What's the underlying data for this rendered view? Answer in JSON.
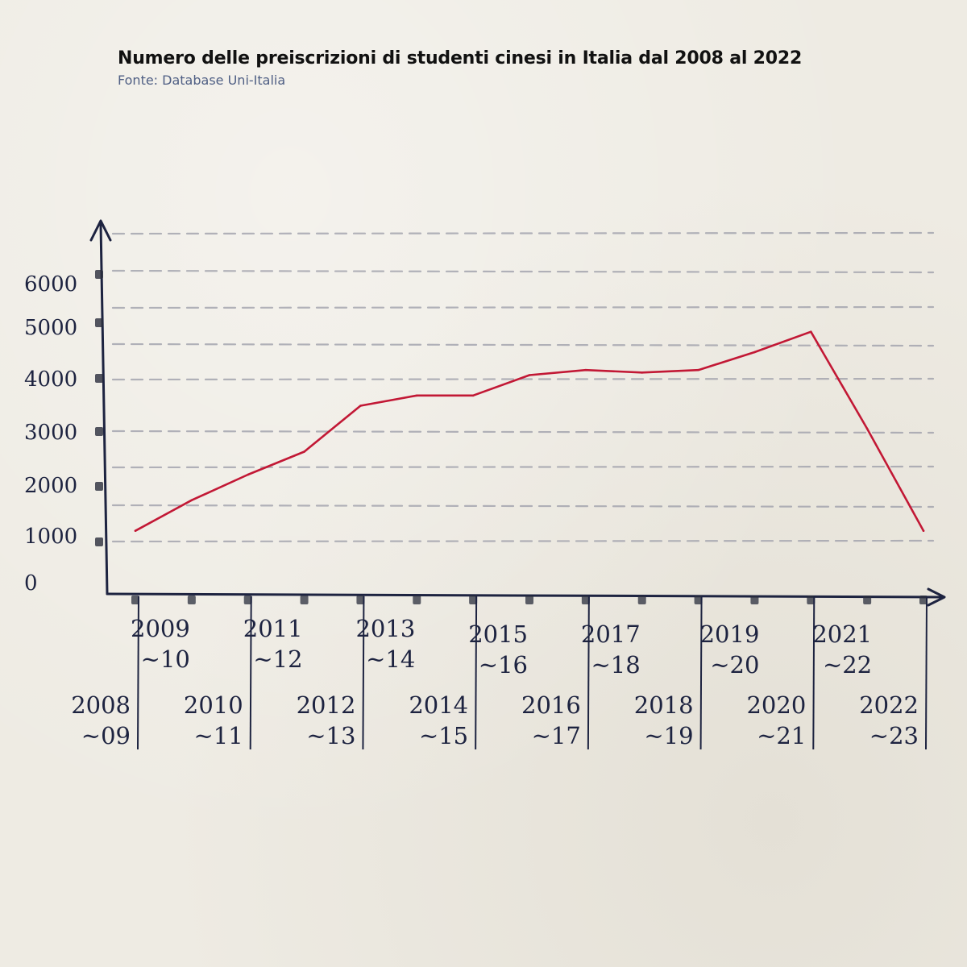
{
  "title": "Numero delle preiscrizioni di studenti cinesi in Italia dal 2008 al 2022",
  "subtitle": "Fonte: Database Uni-Italia",
  "colors": {
    "line": "#c21835",
    "axis": "#1d2340",
    "grid": "#9b9ca8",
    "background": "#eeebe3"
  },
  "chart_data": {
    "type": "line",
    "title": "Numero delle preiscrizioni di studenti cinesi in Italia dal 2008 al 2022",
    "subtitle": "Fonte: Database Uni-Italia",
    "xlabel": "",
    "ylabel": "",
    "ylim": [
      0,
      6000
    ],
    "yticks": [
      "0",
      "1000",
      "2000",
      "3000",
      "4000",
      "5000",
      "6000"
    ],
    "grid": "dashed horizontal",
    "categories": [
      [
        "2008",
        "~09"
      ],
      [
        "2009",
        "~10"
      ],
      [
        "2010",
        "~11"
      ],
      [
        "2011",
        "~12"
      ],
      [
        "2012",
        "~13"
      ],
      [
        "2013",
        "~14"
      ],
      [
        "2014",
        "~15"
      ],
      [
        "2015",
        "~16"
      ],
      [
        "2016",
        "~17"
      ],
      [
        "2017",
        "~18"
      ],
      [
        "2018",
        "~19"
      ],
      [
        "2019",
        "~20"
      ],
      [
        "2020",
        "~21"
      ],
      [
        "2021",
        "~22"
      ],
      [
        "2022",
        "~23"
      ]
    ],
    "values": [
      1000,
      1600,
      2100,
      2550,
      3450,
      3650,
      3650,
      4050,
      4150,
      4100,
      4150,
      4500,
      4900,
      3000,
      1000
    ]
  }
}
